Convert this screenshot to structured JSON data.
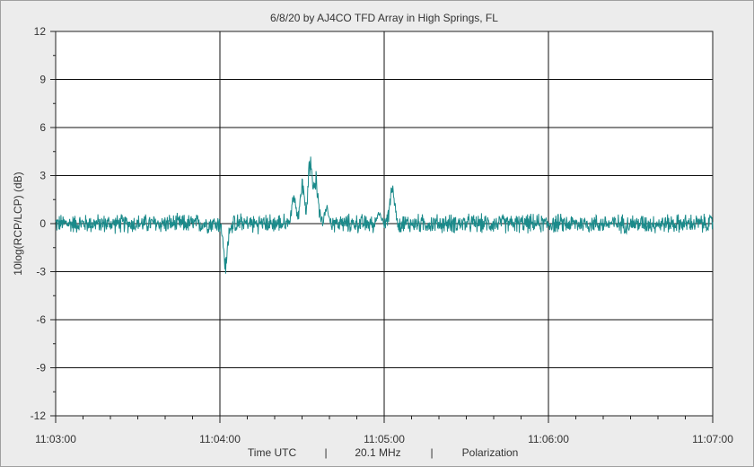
{
  "chart_data": {
    "type": "line",
    "title": "6/8/20  by  AJ4CO TFD Array  in  High Springs, FL",
    "xlabel_parts": [
      "Time UTC",
      "|",
      "20.1 MHz",
      "|",
      "Polarization"
    ],
    "ylabel": "10log(RCP/LCP) (dB)",
    "x_ticks": [
      "11:03:00",
      "11:04:00",
      "11:05:00",
      "11:06:00",
      "11:07:00"
    ],
    "xlim": [
      "11:03:00",
      "11:07:00"
    ],
    "ylim": [
      -12,
      12
    ],
    "y_ticks": [
      12,
      9,
      6,
      3,
      0,
      -3,
      -6,
      -9,
      -12
    ],
    "grid": true,
    "series": [
      {
        "color": "#1a8a8a",
        "baseline": 0,
        "noise_amplitude_db": 0.7,
        "events": [
          {
            "t": "11:04:02",
            "value": -3.2
          },
          {
            "t": "11:04:27",
            "value": 2.0
          },
          {
            "t": "11:04:30",
            "value": 3.0
          },
          {
            "t": "11:04:33",
            "value": 4.7
          },
          {
            "t": "11:04:35",
            "value": 3.5
          },
          {
            "t": "11:04:39",
            "value": 1.2
          },
          {
            "t": "11:04:58",
            "value": 0.8
          },
          {
            "t": "11:05:03",
            "value": 3.0
          }
        ]
      }
    ]
  }
}
